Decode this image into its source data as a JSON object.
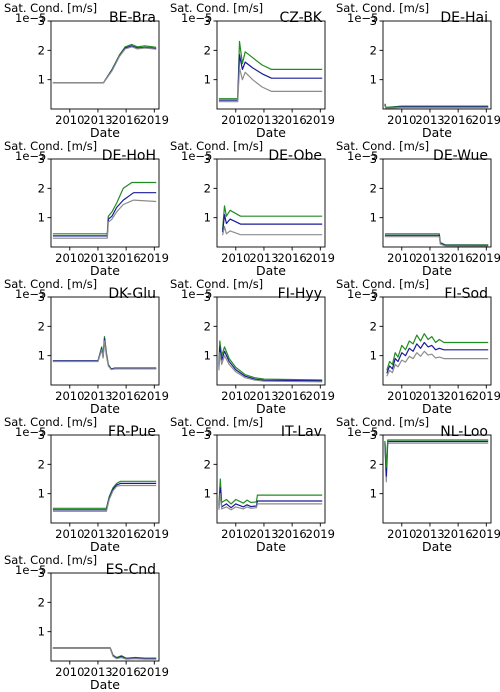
{
  "figure": {
    "ylabel": "Sat. Cond. [m/s]",
    "offset_text": "1e−5",
    "xlabel": "Date",
    "xticks": [
      "2010",
      "2013",
      "2016",
      "2019"
    ],
    "yticks": [
      "1",
      "2",
      "3"
    ],
    "colors": {
      "high": "#228b22",
      "mid": "#1a1a9a",
      "low": "#8c8c8c"
    }
  },
  "chart_data": [
    {
      "type": "line",
      "title": "BE-Bra",
      "xlim": [
        2008,
        2019.5
      ],
      "ylim": [
        0,
        3
      ],
      "series": [
        {
          "color": "#228b22",
          "x": [
            2008.2,
            2013.6,
            2014.5,
            2015.3,
            2015.9,
            2016.6,
            2017.2,
            2018,
            2019.2
          ],
          "y": [
            0.9,
            0.9,
            1.35,
            1.85,
            2.12,
            2.2,
            2.12,
            2.15,
            2.1
          ]
        },
        {
          "color": "#1a1a9a",
          "x": [
            2008.2,
            2013.6,
            2014.5,
            2015.3,
            2015.9,
            2016.6,
            2017.2,
            2018,
            2019.2
          ],
          "y": [
            0.9,
            0.9,
            1.33,
            1.82,
            2.08,
            2.15,
            2.08,
            2.1,
            2.06
          ]
        },
        {
          "color": "#8c8c8c",
          "x": [
            2008.2,
            2013.6,
            2014.5,
            2015.3,
            2015.9,
            2016.6,
            2017.2,
            2018,
            2019.2
          ],
          "y": [
            0.9,
            0.9,
            1.3,
            1.8,
            2.05,
            2.12,
            2.05,
            2.08,
            2.04
          ]
        }
      ]
    },
    {
      "type": "line",
      "title": "CZ-BK",
      "xlim": [
        2008,
        2019.5
      ],
      "ylim": [
        0,
        3
      ],
      "series": [
        {
          "color": "#228b22",
          "x": [
            2008.2,
            2010.2,
            2010.4,
            2010.7,
            2011,
            2011.8,
            2012.8,
            2013.8,
            2019.2
          ],
          "y": [
            0.35,
            0.35,
            2.3,
            1.55,
            1.95,
            1.75,
            1.5,
            1.35,
            1.35
          ]
        },
        {
          "color": "#1a1a9a",
          "x": [
            2008.2,
            2010.2,
            2010.4,
            2010.7,
            2011,
            2011.8,
            2012.8,
            2013.8,
            2019.2
          ],
          "y": [
            0.3,
            0.3,
            1.85,
            1.35,
            1.6,
            1.4,
            1.2,
            1.05,
            1.05
          ]
        },
        {
          "color": "#8c8c8c",
          "x": [
            2008.2,
            2010.2,
            2010.4,
            2010.7,
            2011,
            2011.8,
            2012.8,
            2013.8,
            2019.2
          ],
          "y": [
            0.25,
            0.25,
            1.4,
            1.0,
            1.25,
            1.0,
            0.75,
            0.6,
            0.6
          ]
        }
      ]
    },
    {
      "type": "line",
      "title": "DE-Hai",
      "xlim": [
        2008,
        2019.5
      ],
      "ylim": [
        0,
        3
      ],
      "series": [
        {
          "color": "#228b22",
          "x": [
            2008.2,
            2008.3,
            2008.5,
            2010,
            2019.2
          ],
          "y": [
            0.18,
            0.06,
            0.06,
            0.1,
            0.1
          ]
        },
        {
          "color": "#1a1a9a",
          "x": [
            2008.2,
            2008.3,
            2008.5,
            2010,
            2019.2
          ],
          "y": [
            0.15,
            0.04,
            0.04,
            0.07,
            0.07
          ]
        },
        {
          "color": "#8c8c8c",
          "x": [
            2008.2,
            2008.3,
            2008.5,
            2010,
            2019.2
          ],
          "y": [
            0.12,
            0.03,
            0.03,
            0.05,
            0.05
          ]
        }
      ]
    },
    {
      "type": "line",
      "title": "DE-HoH",
      "xlim": [
        2008,
        2019.5
      ],
      "ylim": [
        0,
        3
      ],
      "series": [
        {
          "color": "#228b22",
          "x": [
            2008.2,
            2014.0,
            2014.1,
            2014.5,
            2015.0,
            2015.7,
            2016.6,
            2019.2
          ],
          "y": [
            0.45,
            0.45,
            1.05,
            1.2,
            1.5,
            2.0,
            2.2,
            2.2
          ]
        },
        {
          "color": "#1a1a9a",
          "x": [
            2008.2,
            2014.0,
            2014.1,
            2014.5,
            2015.0,
            2015.7,
            2016.8,
            2019.2
          ],
          "y": [
            0.38,
            0.38,
            0.95,
            1.05,
            1.35,
            1.6,
            1.85,
            1.85
          ]
        },
        {
          "color": "#8c8c8c",
          "x": [
            2008.2,
            2014.0,
            2014.1,
            2014.5,
            2015.0,
            2015.7,
            2016.8,
            2019.2
          ],
          "y": [
            0.3,
            0.3,
            0.85,
            0.95,
            1.2,
            1.45,
            1.6,
            1.55
          ]
        }
      ]
    },
    {
      "type": "line",
      "title": "DE-Obe",
      "xlim": [
        2008,
        2019.5
      ],
      "ylim": [
        0,
        3
      ],
      "series": [
        {
          "color": "#228b22",
          "x": [
            2008.6,
            2008.8,
            2009.0,
            2009.4,
            2010.5,
            2019.2
          ],
          "y": [
            0.6,
            1.4,
            1.05,
            1.25,
            1.05,
            1.05
          ]
        },
        {
          "color": "#1a1a9a",
          "x": [
            2008.6,
            2008.8,
            2009.0,
            2009.4,
            2010.5,
            2019.2
          ],
          "y": [
            0.5,
            1.1,
            0.8,
            0.95,
            0.78,
            0.78
          ]
        },
        {
          "color": "#8c8c8c",
          "x": [
            2008.6,
            2008.8,
            2009.0,
            2009.4,
            2010.5,
            2019.2
          ],
          "y": [
            0.4,
            0.7,
            0.45,
            0.55,
            0.42,
            0.42
          ]
        }
      ]
    },
    {
      "type": "line",
      "title": "DE-Wue",
      "xlim": [
        2008,
        2019.5
      ],
      "ylim": [
        0,
        3
      ],
      "series": [
        {
          "color": "#228b22",
          "x": [
            2008.2,
            2014.0,
            2014.1,
            2014.6,
            2019.2
          ],
          "y": [
            0.45,
            0.45,
            0.15,
            0.08,
            0.07
          ]
        },
        {
          "color": "#1a1a9a",
          "x": [
            2008.2,
            2014.0,
            2014.1,
            2014.6,
            2019.2
          ],
          "y": [
            0.4,
            0.4,
            0.13,
            0.06,
            0.05
          ]
        },
        {
          "color": "#8c8c8c",
          "x": [
            2008.2,
            2014.0,
            2014.1,
            2014.6,
            2019.2
          ],
          "y": [
            0.35,
            0.35,
            0.1,
            0.04,
            0.03
          ]
        }
      ]
    },
    {
      "type": "line",
      "title": "DK-Glu",
      "xlim": [
        2008,
        2019.5
      ],
      "ylim": [
        0,
        3
      ],
      "series": [
        {
          "color": "#228b22",
          "x": [
            2008.2,
            2013.0,
            2013.4,
            2013.55,
            2013.7,
            2013.9,
            2014.1,
            2014.4,
            2014.8,
            2019.2
          ],
          "y": [
            0.82,
            0.82,
            1.3,
            1.0,
            1.65,
            1.1,
            0.7,
            0.55,
            0.58,
            0.58
          ]
        },
        {
          "color": "#1a1a9a",
          "x": [
            2008.2,
            2013.0,
            2013.4,
            2013.55,
            2013.7,
            2013.9,
            2014.1,
            2014.4,
            2014.8,
            2019.2
          ],
          "y": [
            0.82,
            0.82,
            1.25,
            0.95,
            1.58,
            1.05,
            0.68,
            0.55,
            0.57,
            0.57
          ]
        },
        {
          "color": "#8c8c8c",
          "x": [
            2008.2,
            2013.0,
            2013.4,
            2013.55,
            2013.7,
            2013.9,
            2014.1,
            2014.4,
            2014.8,
            2019.2
          ],
          "y": [
            0.8,
            0.8,
            1.2,
            0.92,
            1.5,
            1.0,
            0.65,
            0.53,
            0.55,
            0.55
          ]
        }
      ]
    },
    {
      "type": "line",
      "title": "FI-Hyy",
      "xlim": [
        2008,
        2019.5
      ],
      "ylim": [
        0,
        3
      ],
      "series": [
        {
          "color": "#228b22",
          "x": [
            2008.2,
            2008.3,
            2008.5,
            2008.8,
            2009.3,
            2010,
            2011,
            2012,
            2013,
            2019.2
          ],
          "y": [
            0.7,
            1.5,
            1.0,
            1.3,
            0.9,
            0.6,
            0.35,
            0.25,
            0.2,
            0.17
          ]
        },
        {
          "color": "#1a1a9a",
          "x": [
            2008.2,
            2008.3,
            2008.5,
            2008.8,
            2009.3,
            2010,
            2011,
            2012,
            2013,
            2019.2
          ],
          "y": [
            0.6,
            1.3,
            0.85,
            1.15,
            0.8,
            0.52,
            0.3,
            0.2,
            0.16,
            0.14
          ]
        },
        {
          "color": "#8c8c8c",
          "x": [
            2008.2,
            2008.3,
            2008.5,
            2008.8,
            2009.3,
            2010,
            2011,
            2012,
            2013,
            2019.2
          ],
          "y": [
            0.5,
            1.1,
            0.7,
            1.0,
            0.7,
            0.45,
            0.25,
            0.17,
            0.13,
            0.11
          ]
        }
      ]
    },
    {
      "type": "line",
      "title": "FI-Sod",
      "xlim": [
        2008,
        2019.5
      ],
      "ylim": [
        0,
        3
      ],
      "series": [
        {
          "color": "#228b22",
          "x": [
            2008.4,
            2008.7,
            2009.0,
            2009.3,
            2009.6,
            2010.0,
            2010.4,
            2010.8,
            2011.2,
            2011.6,
            2012.0,
            2012.4,
            2012.8,
            2013.2,
            2013.6,
            2014.0,
            2014.5,
            2015.0,
            2019.2
          ],
          "y": [
            0.5,
            0.8,
            0.7,
            1.1,
            0.95,
            1.35,
            1.2,
            1.5,
            1.4,
            1.7,
            1.5,
            1.75,
            1.55,
            1.65,
            1.45,
            1.55,
            1.45,
            1.45,
            1.45
          ]
        },
        {
          "color": "#1a1a9a",
          "x": [
            2008.4,
            2008.7,
            2009.0,
            2009.3,
            2009.6,
            2010.0,
            2010.4,
            2010.8,
            2011.2,
            2011.6,
            2012.0,
            2012.4,
            2012.8,
            2013.2,
            2013.6,
            2014.0,
            2014.5,
            2015.0,
            2019.2
          ],
          "y": [
            0.4,
            0.65,
            0.55,
            0.9,
            0.8,
            1.1,
            1.0,
            1.25,
            1.15,
            1.4,
            1.25,
            1.45,
            1.3,
            1.35,
            1.2,
            1.25,
            1.2,
            1.2,
            1.2
          ]
        },
        {
          "color": "#8c8c8c",
          "x": [
            2008.4,
            2008.7,
            2009.0,
            2009.3,
            2009.6,
            2010.0,
            2010.4,
            2010.8,
            2011.2,
            2011.6,
            2012.0,
            2012.4,
            2012.8,
            2013.2,
            2013.6,
            2014.0,
            2014.5,
            2015.0,
            2019.2
          ],
          "y": [
            0.3,
            0.5,
            0.42,
            0.7,
            0.62,
            0.85,
            0.78,
            0.98,
            0.9,
            1.1,
            0.98,
            1.15,
            1.02,
            1.05,
            0.92,
            0.95,
            0.9,
            0.9,
            0.9
          ]
        }
      ]
    },
    {
      "type": "line",
      "title": "FR-Pue",
      "xlim": [
        2008,
        2019.5
      ],
      "ylim": [
        0,
        3
      ],
      "series": [
        {
          "color": "#228b22",
          "x": [
            2008.2,
            2013.9,
            2014.2,
            2014.6,
            2015.0,
            2015.4,
            2019.2
          ],
          "y": [
            0.5,
            0.5,
            0.9,
            1.2,
            1.35,
            1.42,
            1.42
          ]
        },
        {
          "color": "#1a1a9a",
          "x": [
            2008.2,
            2013.9,
            2014.2,
            2014.6,
            2015.0,
            2015.4,
            2019.2
          ],
          "y": [
            0.45,
            0.45,
            0.85,
            1.15,
            1.3,
            1.35,
            1.35
          ]
        },
        {
          "color": "#8c8c8c",
          "x": [
            2008.2,
            2013.9,
            2014.2,
            2014.6,
            2015.0,
            2015.4,
            2019.2
          ],
          "y": [
            0.4,
            0.4,
            0.8,
            1.1,
            1.25,
            1.28,
            1.28
          ]
        }
      ]
    },
    {
      "type": "line",
      "title": "IT-Lav",
      "xlim": [
        2008,
        2019.5
      ],
      "ylim": [
        0,
        3
      ],
      "series": [
        {
          "color": "#228b22",
          "x": [
            2008.2,
            2008.35,
            2008.5,
            2009.0,
            2009.5,
            2010.0,
            2010.8,
            2011.2,
            2011.6,
            2012.2,
            2012.3,
            2019.2
          ],
          "y": [
            0.6,
            1.5,
            0.7,
            0.8,
            0.65,
            0.8,
            0.68,
            0.78,
            0.7,
            0.72,
            0.95,
            0.95
          ]
        },
        {
          "color": "#1a1a9a",
          "x": [
            2008.2,
            2008.35,
            2008.5,
            2009.0,
            2009.5,
            2010.0,
            2010.8,
            2011.2,
            2011.6,
            2012.2,
            2012.3,
            2019.2
          ],
          "y": [
            0.5,
            1.2,
            0.55,
            0.65,
            0.52,
            0.65,
            0.55,
            0.62,
            0.56,
            0.58,
            0.75,
            0.75
          ]
        },
        {
          "color": "#8c8c8c",
          "x": [
            2008.2,
            2008.35,
            2008.5,
            2009.0,
            2009.5,
            2010.0,
            2010.8,
            2011.2,
            2011.6,
            2012.2,
            2012.3,
            2019.2
          ],
          "y": [
            0.45,
            1.0,
            0.48,
            0.55,
            0.45,
            0.55,
            0.48,
            0.55,
            0.5,
            0.52,
            0.65,
            0.65
          ]
        }
      ]
    },
    {
      "type": "line",
      "title": "NL-Loo",
      "xlim": [
        2008,
        2019.5
      ],
      "ylim": [
        0,
        3
      ],
      "series": [
        {
          "color": "#8c8c8c",
          "x": [
            2008.2,
            2008.35,
            2008.5,
            2019.2
          ],
          "y": [
            2.7,
            1.4,
            2.72,
            2.72
          ]
        },
        {
          "color": "#1a1a9a",
          "x": [
            2008.2,
            2008.35,
            2008.5,
            2019.2
          ],
          "y": [
            2.75,
            1.6,
            2.78,
            2.78
          ]
        },
        {
          "color": "#228b22",
          "x": [
            2008.2,
            2008.35,
            2008.5,
            2019.2
          ],
          "y": [
            2.8,
            1.9,
            2.83,
            2.83
          ]
        }
      ]
    },
    {
      "type": "line",
      "title": "ES-Cnd",
      "xlim": [
        2008,
        2019.5
      ],
      "ylim": [
        0,
        3
      ],
      "series": [
        {
          "color": "#228b22",
          "x": [
            2008.2,
            2014.3,
            2014.6,
            2015.0,
            2015.5,
            2016.0,
            2017.0,
            2018.0,
            2019.2
          ],
          "y": [
            0.45,
            0.45,
            0.2,
            0.12,
            0.18,
            0.1,
            0.12,
            0.1,
            0.1
          ]
        },
        {
          "color": "#1a1a9a",
          "x": [
            2008.2,
            2014.3,
            2014.6,
            2015.0,
            2015.5,
            2016.0,
            2017.0,
            2018.0,
            2019.2
          ],
          "y": [
            0.44,
            0.44,
            0.18,
            0.1,
            0.15,
            0.08,
            0.1,
            0.08,
            0.08
          ]
        },
        {
          "color": "#8c8c8c",
          "x": [
            2008.2,
            2014.3,
            2014.6,
            2015.0,
            2015.5,
            2016.0,
            2017.0,
            2018.0,
            2019.2
          ],
          "y": [
            0.43,
            0.43,
            0.16,
            0.08,
            0.12,
            0.06,
            0.08,
            0.06,
            0.06
          ]
        }
      ]
    }
  ]
}
